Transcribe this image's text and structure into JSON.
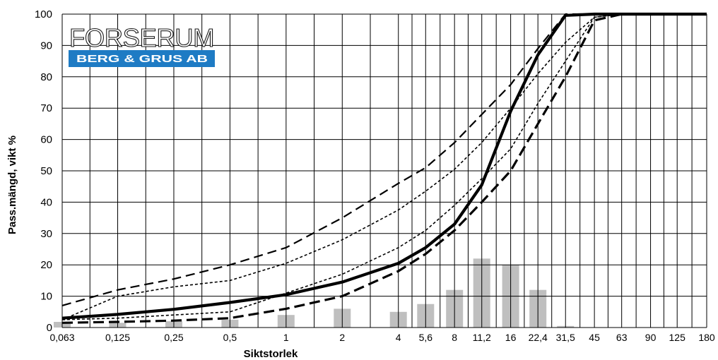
{
  "chart_data": {
    "type": "line",
    "xlabel": "Siktstorlek",
    "ylabel": "Pass.mängd, vikt %",
    "ylim": [
      0,
      100
    ],
    "y_ticks": [
      "0",
      "10",
      "20",
      "30",
      "40",
      "50",
      "60",
      "70",
      "80",
      "90",
      "100"
    ],
    "x_scale": "log",
    "categories": [
      "0,063",
      "0,125",
      "0,25",
      "0,5",
      "1",
      "2",
      "4",
      "5,6",
      "8",
      "11,2",
      "16",
      "22,4",
      "31,5",
      "45",
      "63",
      "90",
      "125",
      "180"
    ],
    "x_values": [
      0.063,
      0.125,
      0.25,
      0.5,
      1,
      2,
      4,
      5.6,
      8,
      11.2,
      16,
      22.4,
      31.5,
      45,
      63,
      90,
      125,
      180
    ],
    "grid": true,
    "legend": "none",
    "series": [
      {
        "style": "solid-thick",
        "color": "#000000",
        "values": [
          3,
          4.2,
          5.8,
          8,
          10.5,
          14.5,
          20.5,
          25.5,
          33,
          45.5,
          69,
          87,
          99.6,
          100,
          100,
          100,
          100,
          100
        ]
      },
      {
        "style": "dashed-upper-limit",
        "color": "#000000",
        "values": [
          7,
          12,
          15.5,
          20,
          25.5,
          35,
          46,
          51,
          59,
          68,
          77.5,
          89,
          100,
          100,
          100,
          100,
          100,
          100
        ]
      },
      {
        "style": "dashed-lower-limit",
        "color": "#000000",
        "values": [
          1.5,
          1.8,
          2.2,
          3,
          6,
          10,
          18,
          23.5,
          31,
          40,
          50,
          65,
          80,
          98,
          100,
          100,
          100,
          100
        ]
      },
      {
        "style": "dotted-inner-upper",
        "color": "#000000",
        "values": [
          2.5,
          10,
          13,
          15,
          20.5,
          28,
          37.5,
          43.5,
          50.5,
          59,
          70,
          81,
          91,
          99,
          100,
          100,
          100,
          100
        ]
      },
      {
        "style": "dotted-inner-lower",
        "color": "#000000",
        "values": [
          2.5,
          3,
          4,
          5,
          11,
          17,
          25.5,
          31,
          39,
          47.5,
          57,
          71.5,
          85,
          99,
          100,
          100,
          100,
          100
        ]
      }
    ],
    "bars": {
      "color": "#bfbfbf",
      "values": [
        1.8,
        1.5,
        2,
        2.5,
        4,
        6,
        5,
        7.5,
        12,
        22,
        20,
        12,
        0.5,
        0,
        0,
        0,
        0,
        0
      ]
    }
  },
  "logo": {
    "name": "FORSERUM",
    "subtitle": "BERG & GRUS AB",
    "colors": {
      "banner": "#1e7bc4",
      "outline": "#1b1b1b"
    }
  },
  "colors": {
    "grid": "#000000",
    "background": "#ffffff"
  }
}
